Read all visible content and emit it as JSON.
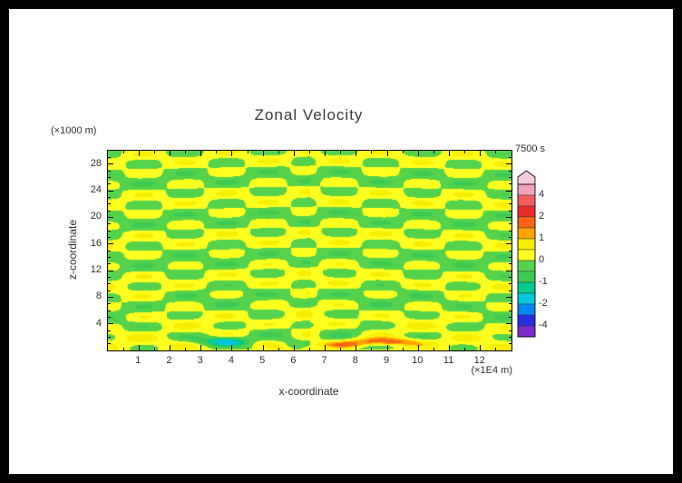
{
  "figure": {
    "frame_color": "#000000",
    "background_color": "#FFFFFF",
    "text_color": "#303030"
  },
  "chart_data": {
    "type": "filled_contour",
    "title": "Zonal Velocity",
    "time_label": "7500 s",
    "xlabel": "x-coordinate",
    "x_unit": "(×1E4 m)",
    "x_range": [
      0,
      13
    ],
    "x_major_ticks": [
      1,
      2,
      3,
      4,
      5,
      6,
      7,
      8,
      9,
      10,
      11,
      12
    ],
    "ylabel": "z-coordinate",
    "y_unit": "(×1000 m)",
    "y_range": [
      0,
      30
    ],
    "y_major_ticks": [
      4,
      8,
      12,
      16,
      20,
      24,
      28
    ],
    "levels": [
      4,
      3,
      2,
      1.5,
      1,
      0.5,
      0,
      -0.5,
      -1,
      -1.5,
      -2,
      -3,
      -4
    ],
    "palette_top_to_bottom": [
      "#F2A3BC",
      "#F65B5B",
      "#EA2A2A",
      "#FF6414",
      "#FFA300",
      "#F8EE00",
      "#FFFF20",
      "#55D24B",
      "#3FCB52",
      "#00CC8E",
      "#00C8DC",
      "#0087F0",
      "#2430E0",
      "#7A2BC8"
    ],
    "colorbar": {
      "cap_color": "#F6CEDA",
      "tick_labels": [
        4,
        2,
        1,
        0,
        -1,
        -2,
        -4
      ]
    },
    "field_summary": "Zonal velocity at t = 7500 s: wave interference pattern radiating from a source near x = 6.5e4 m at the bottom of the domain; background oscillates between about -1 (green) and +1 (yellow); localized minimum near -2 (cyan streak) around x = 3.8e4 m, z = 1.5e3 m and localized maximum near +2 (orange-red streak) around x = 9e4 m, z = 1.5e3 m.",
    "synth": {
      "source": {
        "x": 6.5,
        "z": -1.2
      },
      "checker": {
        "amp": 0.58,
        "kz": 2.05,
        "kx": 2.35,
        "zphase": 0.4,
        "xslope": 0.18,
        "right_phase": 0.9
      },
      "fan": {
        "amp": 0.3,
        "n": 11,
        "decay": 7
      },
      "rings": {
        "amp": 0.15,
        "kr": 1.05,
        "phase": 1.2
      },
      "floor": {
        "amp": 0.22,
        "decay": 2.2
      },
      "spots": [
        {
          "x": 3.8,
          "z": 1.4,
          "sx": 0.55,
          "sz": 0.45,
          "amp": -1.7
        },
        {
          "x": 9.0,
          "z": 1.3,
          "sx": 0.75,
          "sz": 0.4,
          "amp": 2.1
        },
        {
          "x": 7.4,
          "z": 0.9,
          "sx": 0.5,
          "sz": 0.3,
          "amp": 1.1
        }
      ]
    }
  }
}
